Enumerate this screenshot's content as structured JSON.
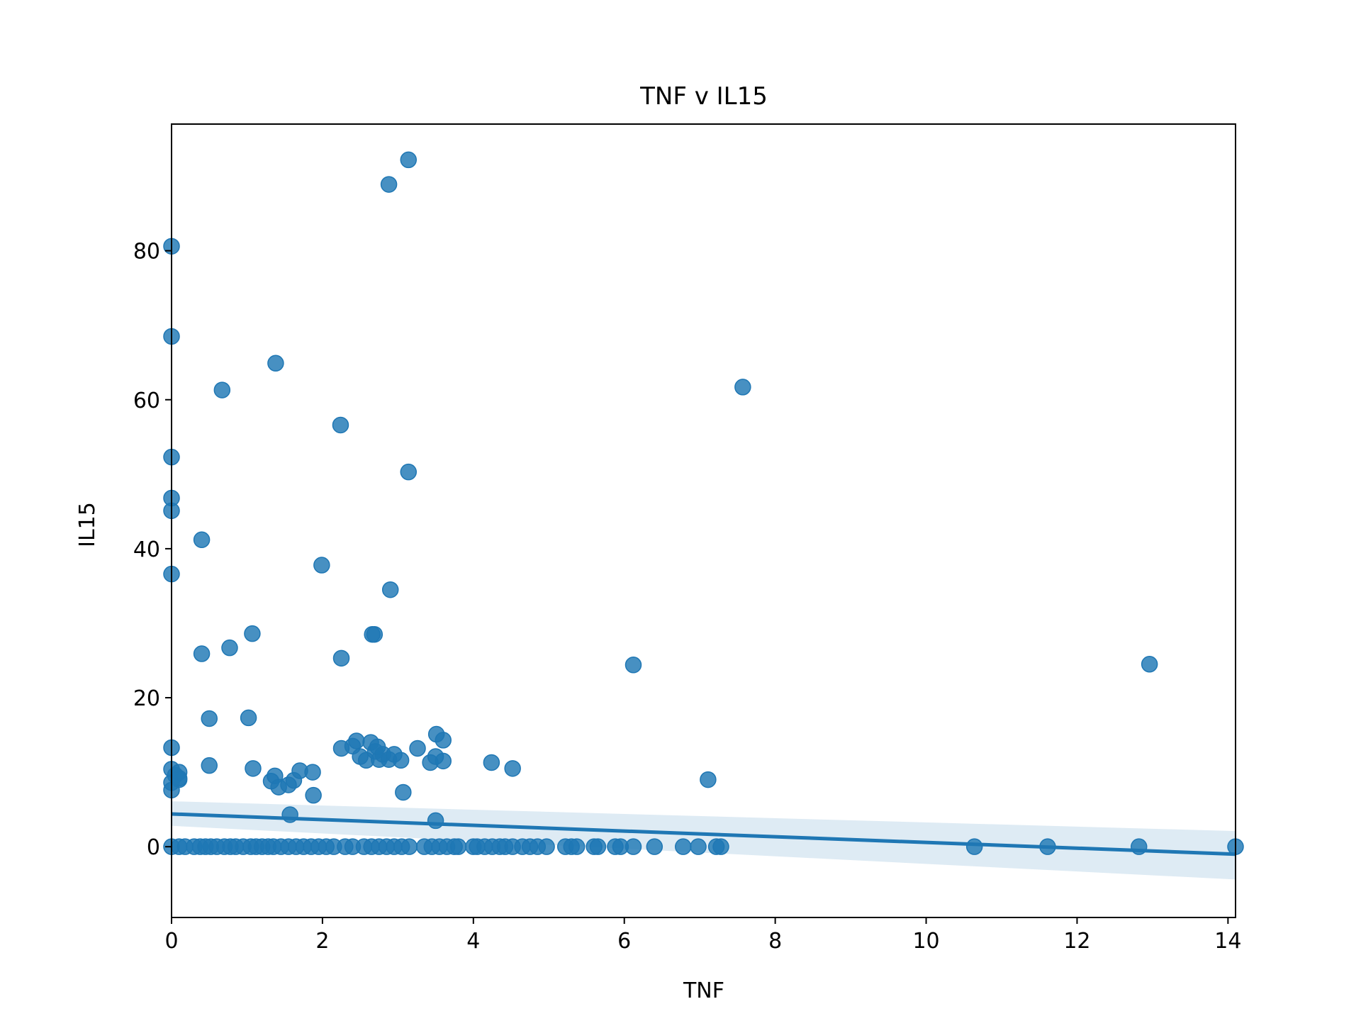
{
  "chart_data": {
    "type": "scatter",
    "title": "TNF v IL15",
    "xlabel": "TNF",
    "ylabel": "IL15",
    "xlim": [
      0,
      14.1
    ],
    "ylim": [
      -9.5,
      97
    ],
    "xticks": [
      0,
      2,
      4,
      6,
      8,
      10,
      12,
      14
    ],
    "yticks": [
      0,
      20,
      40,
      60,
      80
    ],
    "grid": false,
    "colors": {
      "point": "#1f77b4",
      "line": "#1f77b4",
      "band": "#1f77b4"
    },
    "regression": {
      "x": [
        0,
        14.1
      ],
      "y": [
        4.4,
        -1.0
      ],
      "ci_upper": [
        6.1,
        2.1
      ],
      "ci_lower": [
        2.8,
        -4.4
      ]
    },
    "points": [
      {
        "x": 0.0,
        "y": 80.6
      },
      {
        "x": 0.0,
        "y": 68.5
      },
      {
        "x": 0.0,
        "y": 52.3
      },
      {
        "x": 0.0,
        "y": 46.8
      },
      {
        "x": 0.0,
        "y": 45.1
      },
      {
        "x": 0.0,
        "y": 36.6
      },
      {
        "x": 0.0,
        "y": 13.3
      },
      {
        "x": 0.0,
        "y": 10.4
      },
      {
        "x": 0.05,
        "y": 9.6
      },
      {
        "x": 0.1,
        "y": 9.0
      },
      {
        "x": 0.0,
        "y": 8.6
      },
      {
        "x": 0.0,
        "y": 7.6
      },
      {
        "x": 0.1,
        "y": 10.0
      },
      {
        "x": 0.1,
        "y": 9.2
      },
      {
        "x": 0.4,
        "y": 41.2
      },
      {
        "x": 0.4,
        "y": 25.9
      },
      {
        "x": 0.5,
        "y": 17.2
      },
      {
        "x": 0.5,
        "y": 10.9
      },
      {
        "x": 0.67,
        "y": 61.3
      },
      {
        "x": 0.77,
        "y": 26.7
      },
      {
        "x": 1.02,
        "y": 17.3
      },
      {
        "x": 1.07,
        "y": 28.6
      },
      {
        "x": 1.08,
        "y": 10.5
      },
      {
        "x": 1.38,
        "y": 64.9
      },
      {
        "x": 1.32,
        "y": 8.8
      },
      {
        "x": 1.37,
        "y": 9.5
      },
      {
        "x": 1.42,
        "y": 8.0
      },
      {
        "x": 1.55,
        "y": 8.3
      },
      {
        "x": 1.62,
        "y": 8.9
      },
      {
        "x": 1.57,
        "y": 4.3
      },
      {
        "x": 1.7,
        "y": 10.2
      },
      {
        "x": 1.87,
        "y": 10.0
      },
      {
        "x": 1.88,
        "y": 6.9
      },
      {
        "x": 1.99,
        "y": 37.8
      },
      {
        "x": 2.24,
        "y": 56.6
      },
      {
        "x": 2.25,
        "y": 25.3
      },
      {
        "x": 2.25,
        "y": 13.2
      },
      {
        "x": 2.4,
        "y": 13.5
      },
      {
        "x": 2.45,
        "y": 14.2
      },
      {
        "x": 2.5,
        "y": 12.1
      },
      {
        "x": 2.58,
        "y": 11.6
      },
      {
        "x": 2.64,
        "y": 14.0
      },
      {
        "x": 2.66,
        "y": 28.5
      },
      {
        "x": 2.69,
        "y": 28.5
      },
      {
        "x": 2.7,
        "y": 12.8
      },
      {
        "x": 2.75,
        "y": 11.7
      },
      {
        "x": 2.73,
        "y": 13.4
      },
      {
        "x": 2.8,
        "y": 12.4
      },
      {
        "x": 2.88,
        "y": 88.9
      },
      {
        "x": 2.9,
        "y": 34.5
      },
      {
        "x": 2.88,
        "y": 11.7
      },
      {
        "x": 2.95,
        "y": 12.4
      },
      {
        "x": 3.04,
        "y": 11.6
      },
      {
        "x": 3.07,
        "y": 7.3
      },
      {
        "x": 3.14,
        "y": 92.2
      },
      {
        "x": 3.14,
        "y": 50.3
      },
      {
        "x": 3.26,
        "y": 13.2
      },
      {
        "x": 3.43,
        "y": 11.3
      },
      {
        "x": 3.5,
        "y": 12.1
      },
      {
        "x": 3.51,
        "y": 15.1
      },
      {
        "x": 3.5,
        "y": 3.5
      },
      {
        "x": 3.6,
        "y": 14.3
      },
      {
        "x": 3.6,
        "y": 11.5
      },
      {
        "x": 4.24,
        "y": 11.3
      },
      {
        "x": 4.52,
        "y": 10.5
      },
      {
        "x": 6.12,
        "y": 24.4
      },
      {
        "x": 7.11,
        "y": 9.0
      },
      {
        "x": 7.57,
        "y": 61.7
      },
      {
        "x": 12.96,
        "y": 24.5
      },
      {
        "x": 0.0,
        "y": 0
      },
      {
        "x": 0.1,
        "y": 0
      },
      {
        "x": 0.18,
        "y": 0
      },
      {
        "x": 0.3,
        "y": 0
      },
      {
        "x": 0.38,
        "y": 0
      },
      {
        "x": 0.45,
        "y": 0
      },
      {
        "x": 0.52,
        "y": 0
      },
      {
        "x": 0.6,
        "y": 0
      },
      {
        "x": 0.7,
        "y": 0
      },
      {
        "x": 0.78,
        "y": 0
      },
      {
        "x": 0.85,
        "y": 0
      },
      {
        "x": 0.95,
        "y": 0
      },
      {
        "x": 1.05,
        "y": 0
      },
      {
        "x": 1.12,
        "y": 0
      },
      {
        "x": 1.2,
        "y": 0
      },
      {
        "x": 1.28,
        "y": 0
      },
      {
        "x": 1.35,
        "y": 0
      },
      {
        "x": 1.45,
        "y": 0
      },
      {
        "x": 1.55,
        "y": 0
      },
      {
        "x": 1.65,
        "y": 0
      },
      {
        "x": 1.75,
        "y": 0
      },
      {
        "x": 1.85,
        "y": 0
      },
      {
        "x": 1.95,
        "y": 0
      },
      {
        "x": 2.05,
        "y": 0
      },
      {
        "x": 2.15,
        "y": 0
      },
      {
        "x": 2.3,
        "y": 0
      },
      {
        "x": 2.4,
        "y": 0
      },
      {
        "x": 2.55,
        "y": 0
      },
      {
        "x": 2.65,
        "y": 0
      },
      {
        "x": 2.75,
        "y": 0
      },
      {
        "x": 2.85,
        "y": 0
      },
      {
        "x": 2.95,
        "y": 0
      },
      {
        "x": 3.05,
        "y": 0
      },
      {
        "x": 3.15,
        "y": 0
      },
      {
        "x": 3.35,
        "y": 0
      },
      {
        "x": 3.45,
        "y": 0
      },
      {
        "x": 3.55,
        "y": 0
      },
      {
        "x": 3.65,
        "y": 0
      },
      {
        "x": 3.75,
        "y": 0
      },
      {
        "x": 3.8,
        "y": 0
      },
      {
        "x": 4.0,
        "y": 0
      },
      {
        "x": 4.05,
        "y": 0
      },
      {
        "x": 4.15,
        "y": 0
      },
      {
        "x": 4.25,
        "y": 0
      },
      {
        "x": 4.35,
        "y": 0
      },
      {
        "x": 4.42,
        "y": 0
      },
      {
        "x": 4.52,
        "y": 0
      },
      {
        "x": 4.65,
        "y": 0
      },
      {
        "x": 4.75,
        "y": 0
      },
      {
        "x": 4.85,
        "y": 0
      },
      {
        "x": 4.97,
        "y": 0
      },
      {
        "x": 5.22,
        "y": 0
      },
      {
        "x": 5.3,
        "y": 0
      },
      {
        "x": 5.37,
        "y": 0
      },
      {
        "x": 5.6,
        "y": 0
      },
      {
        "x": 5.65,
        "y": 0
      },
      {
        "x": 5.88,
        "y": 0
      },
      {
        "x": 5.95,
        "y": 0
      },
      {
        "x": 6.12,
        "y": 0
      },
      {
        "x": 6.4,
        "y": 0
      },
      {
        "x": 6.78,
        "y": 0
      },
      {
        "x": 6.98,
        "y": 0
      },
      {
        "x": 7.22,
        "y": 0
      },
      {
        "x": 7.28,
        "y": 0
      },
      {
        "x": 10.64,
        "y": 0
      },
      {
        "x": 11.61,
        "y": 0
      },
      {
        "x": 12.82,
        "y": 0
      },
      {
        "x": 14.1,
        "y": 0
      }
    ]
  }
}
